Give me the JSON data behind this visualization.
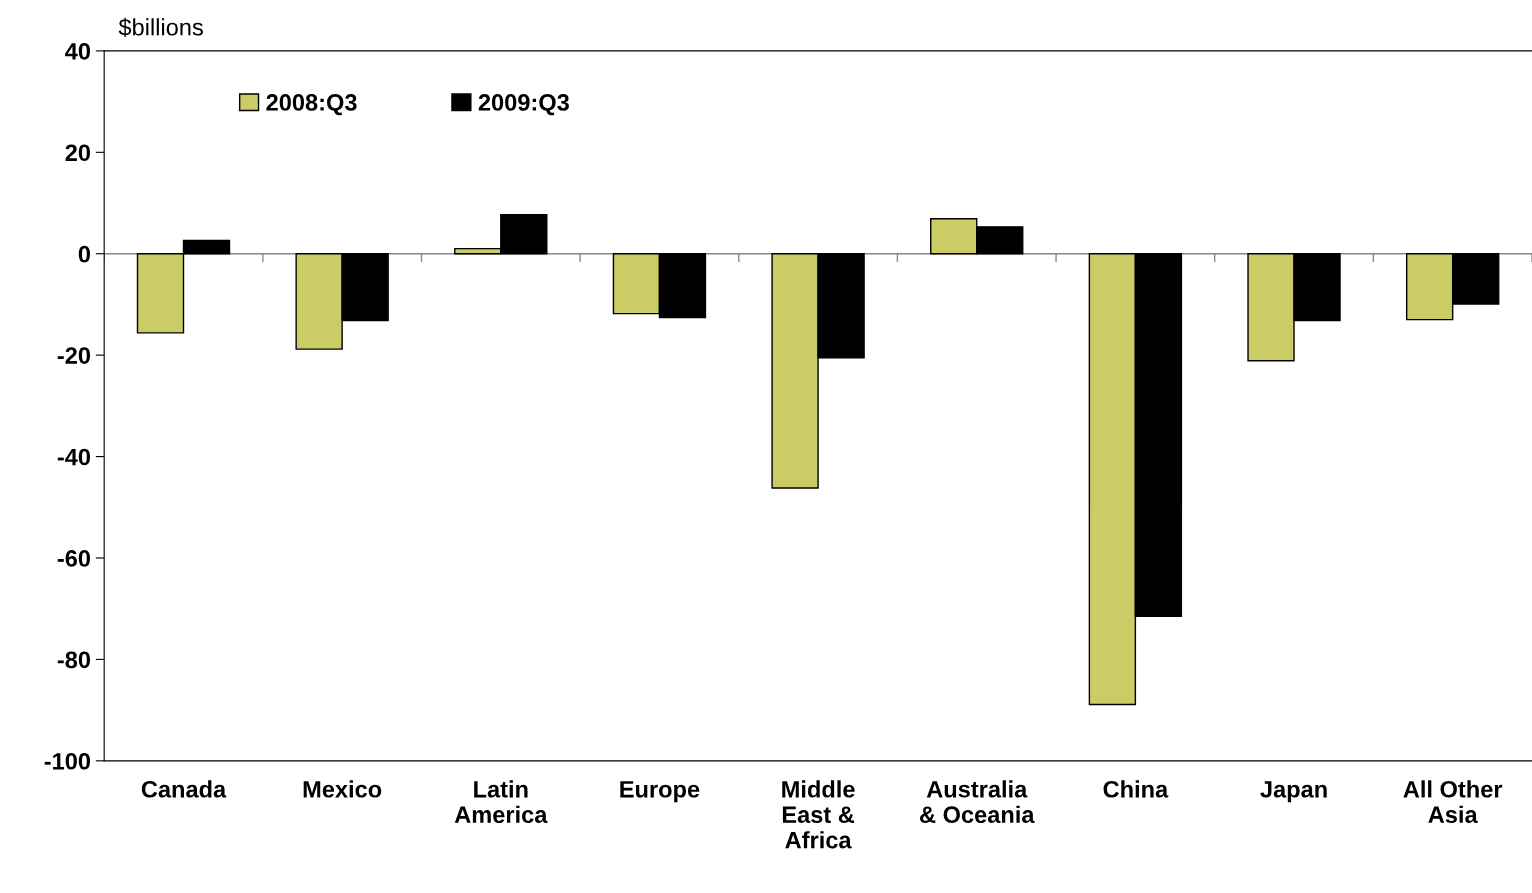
{
  "chart_data": {
    "type": "bar",
    "ylabel": "$billions",
    "categories": [
      "Canada",
      "Mexico",
      "Latin\nAmerica",
      "Europe",
      "Middle\nEast &\nAfrica",
      "Australia\n& Oceania",
      "China",
      "Japan",
      "All Other\nAsia"
    ],
    "series": [
      {
        "name": "2008:Q3",
        "color": "#cccc66",
        "values": [
          -15.6,
          -18.8,
          1.0,
          -11.8,
          -46.2,
          6.9,
          -88.9,
          -21.1,
          -13.0
        ]
      },
      {
        "name": "2009:Q3",
        "color": "#000000",
        "values": [
          2.6,
          -13.2,
          7.7,
          -12.6,
          -20.5,
          5.3,
          -71.5,
          -13.2,
          -9.9
        ]
      }
    ],
    "ylim": [
      -100,
      40
    ],
    "yticks": [
      -100,
      -80,
      -60,
      -40,
      -20,
      0,
      20,
      40
    ],
    "legend": "top left"
  }
}
